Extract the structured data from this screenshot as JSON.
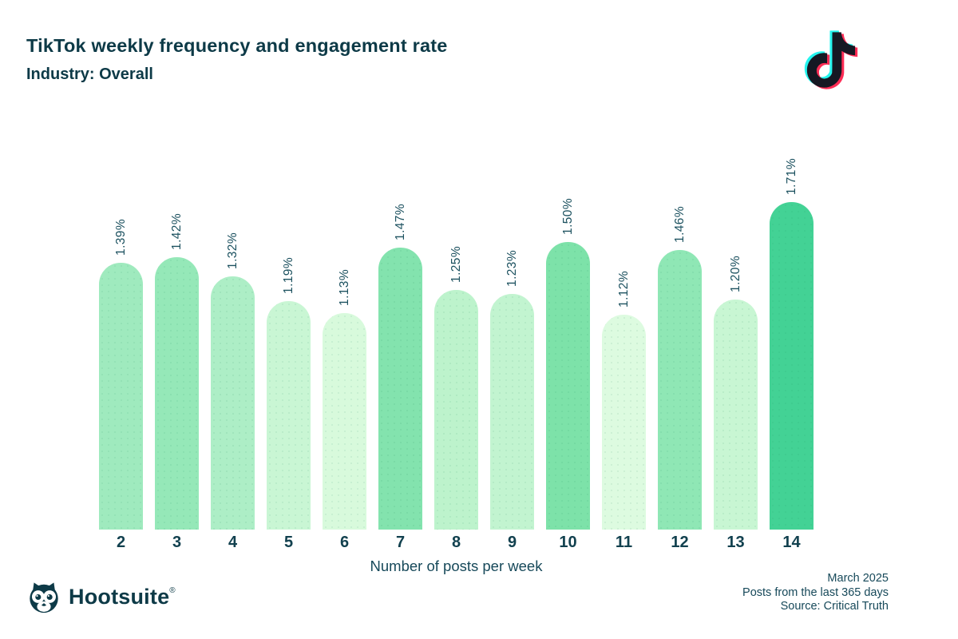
{
  "header": {
    "title": "TikTok weekly frequency and engagement rate",
    "subtitle": "Industry: Overall"
  },
  "chart_data": {
    "type": "bar",
    "title": "TikTok weekly frequency and engagement rate",
    "subtitle": "Industry: Overall",
    "categories": [
      "2",
      "3",
      "4",
      "5",
      "6",
      "7",
      "8",
      "9",
      "10",
      "11",
      "12",
      "13",
      "14"
    ],
    "values": [
      1.39,
      1.42,
      1.32,
      1.19,
      1.13,
      1.47,
      1.25,
      1.23,
      1.5,
      1.12,
      1.46,
      1.2,
      1.71
    ],
    "labels": [
      "1.39%",
      "1.42%",
      "1.32%",
      "1.19%",
      "1.13%",
      "1.47%",
      "1.25%",
      "1.23%",
      "1.50%",
      "1.12%",
      "1.46%",
      "1.20%",
      "1.71%"
    ],
    "bar_colors": [
      "#9feabe",
      "#95e8b8",
      "#adeec6",
      "#c9f6d4",
      "#d8fadc",
      "#83e3ae",
      "#bdf3cc",
      "#c2f4d0",
      "#7de2a9",
      "#ddfbe0",
      "#8fe7b5",
      "#c8f6d3",
      "#43d295"
    ],
    "xlabel": "Number of posts per week",
    "ylabel": "",
    "ylim": [
      0,
      1.8
    ],
    "grid": false,
    "legend": false,
    "bar_corner": "rounded-top",
    "value_label_rotation": -90
  },
  "hootsuite": {
    "brand": "Hootsuite",
    "registered": "®"
  },
  "footer": {
    "meta_lines": [
      "March 2025",
      "Posts from the last 365 days",
      "Source: Critical Truth"
    ]
  },
  "colors": {
    "text_dark": "#0d3a47",
    "value_label_text": "#1d5260",
    "bar_darkest": "#43d295",
    "bar_lightest": "#ddfbe0",
    "tiktok_cyan": "#25f4ee",
    "tiktok_pink": "#fe2c55",
    "tiktok_black": "#161823"
  }
}
